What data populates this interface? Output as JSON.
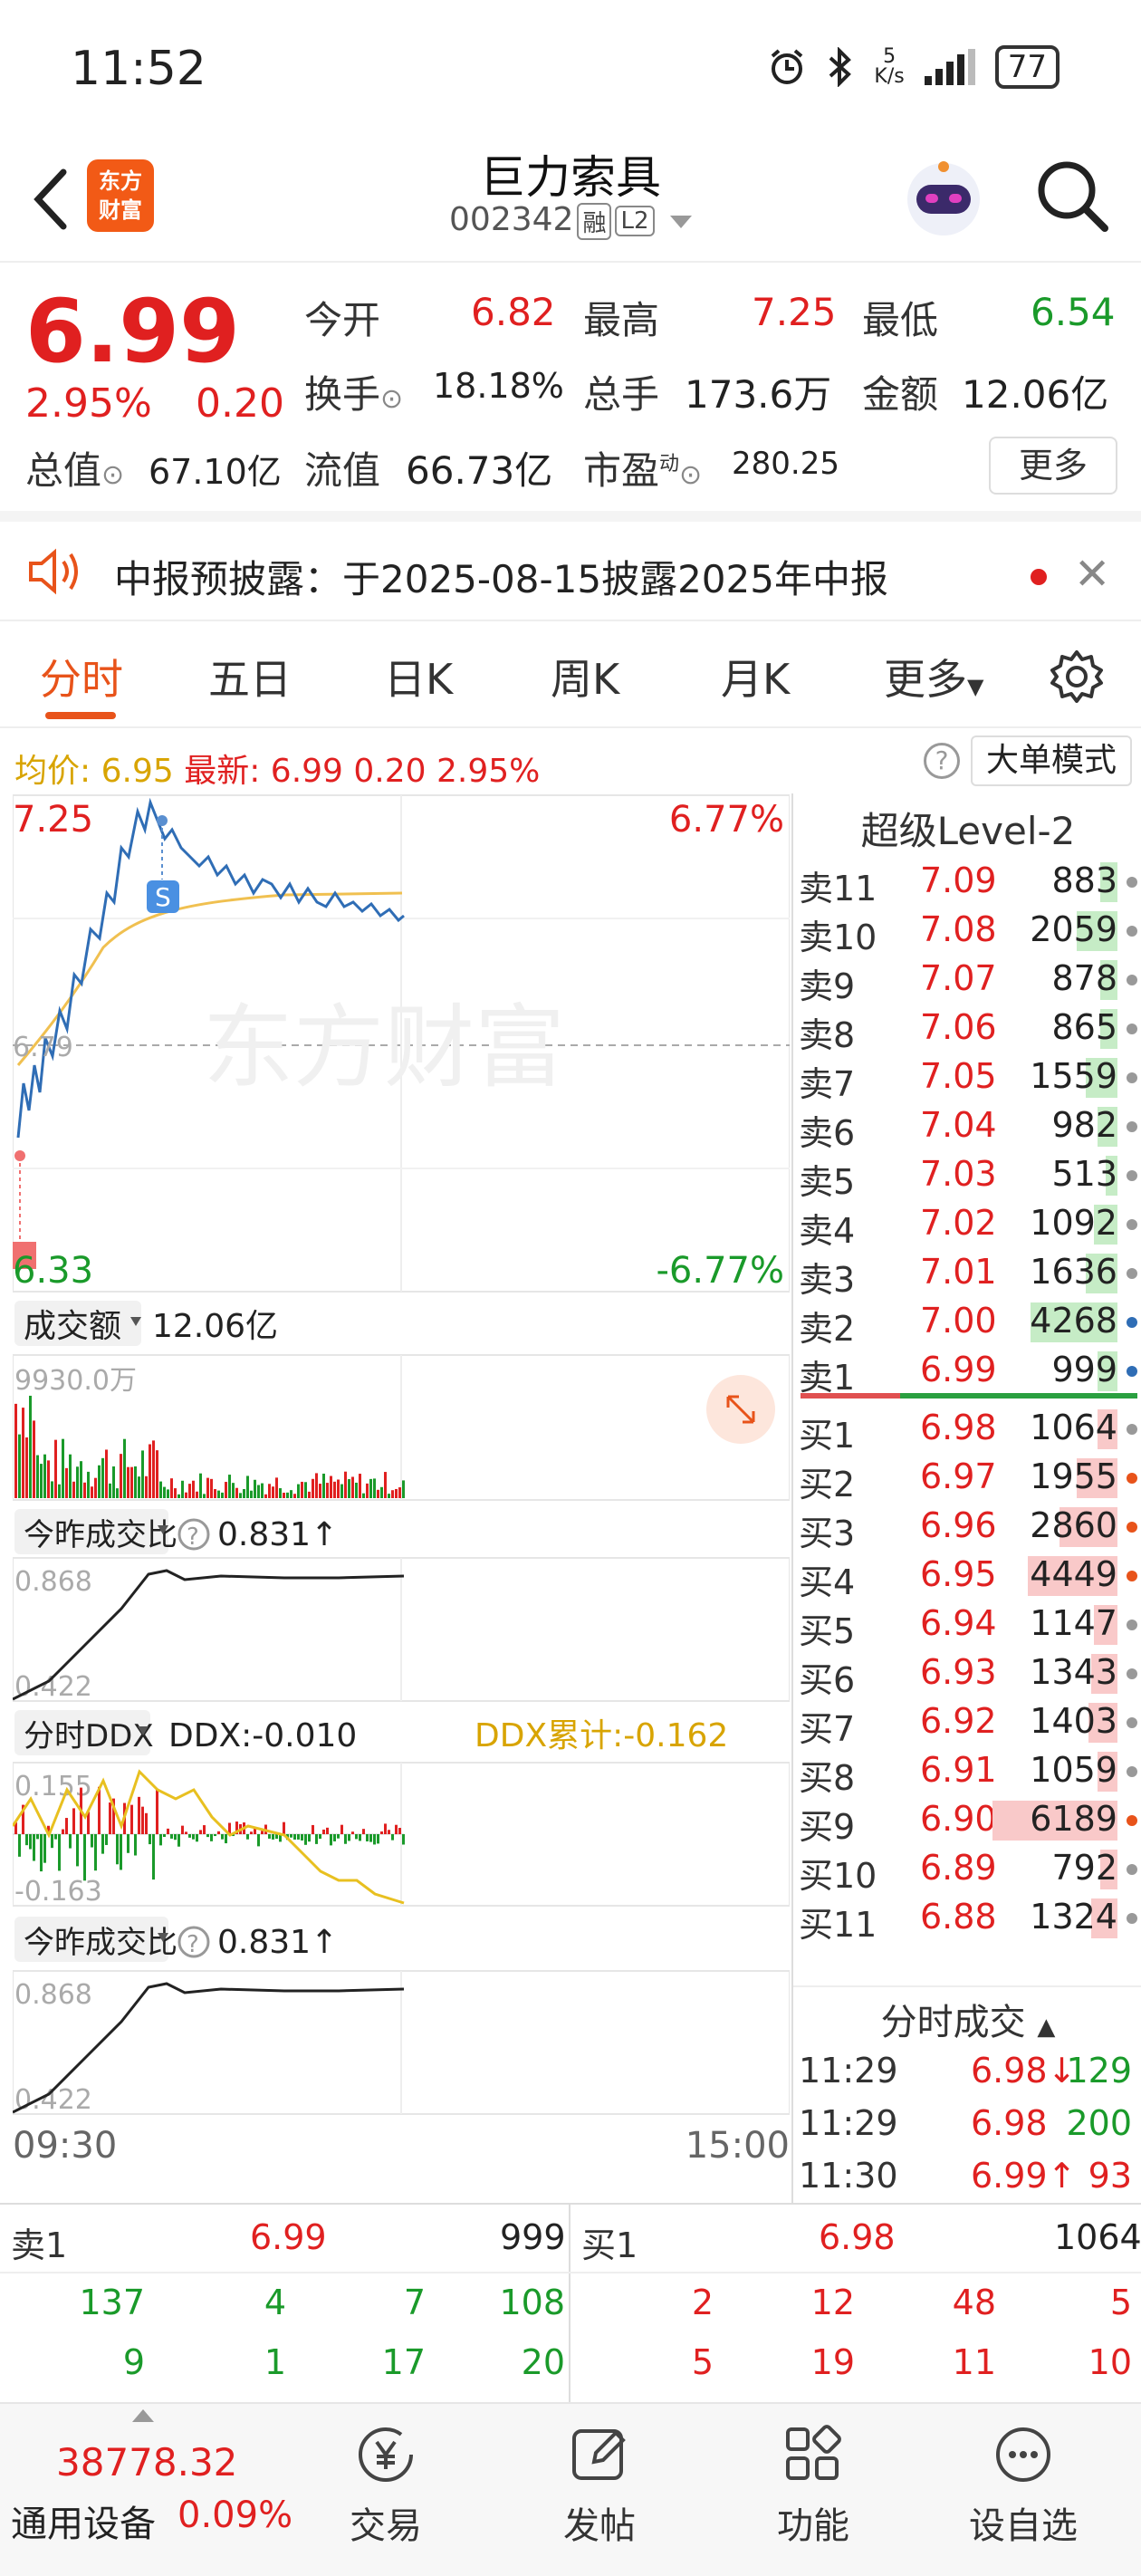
{
  "status_bar": {
    "time": "11:52",
    "net_speed_value": "5",
    "net_speed_unit": "K/s",
    "battery": "77"
  },
  "header": {
    "stock_name": "巨力索具",
    "stock_code": "002342",
    "tag_margin": "融",
    "tag_level": "L2",
    "logo_line1": "东方",
    "logo_line2": "财富"
  },
  "quote": {
    "price": "6.99",
    "change_pct": "2.95%",
    "change_amt": "0.20",
    "open_label": "今开",
    "open": "6.82",
    "high_label": "最高",
    "high": "7.25",
    "low_label": "最低",
    "low": "6.54",
    "turnover_label": "换手",
    "turnover": "18.18%",
    "volume_label": "总手",
    "volume": "173.6万",
    "amount_label": "金额",
    "amount": "12.06亿",
    "mktcap_label": "总值",
    "mktcap": "67.10亿",
    "float_label": "流值",
    "float_cap": "66.73亿",
    "pe_label": "市盈",
    "pe_sup": "动",
    "pe": "280.25",
    "more_label": "更多"
  },
  "notice": {
    "text": "中报预披露：于2025-08-15披露2025年中报"
  },
  "tabs": [
    {
      "label": "分时"
    },
    {
      "label": "五日"
    },
    {
      "label": "日K"
    },
    {
      "label": "周K"
    },
    {
      "label": "月K"
    },
    {
      "label": "更多"
    }
  ],
  "avg_line": {
    "avg_label": "均价:",
    "avg": "6.95",
    "latest_label": "最新:",
    "latest": "6.99",
    "chg": "0.20",
    "pct": "2.95%",
    "mode_label": "大单模式"
  },
  "chart": {
    "price_high": "7.25",
    "pct_high": "6.77%",
    "price_low": "6.33",
    "pct_low": "-6.77%",
    "prev_close_label": "6.79",
    "watermark": "东方财富",
    "volume_sub": {
      "title": "成交额",
      "value": "12.06亿",
      "max": "9930.0万"
    },
    "ratio_sub1": {
      "title": "今昨成交比",
      "value": "0.831↑",
      "max": "0.868",
      "min": "0.422"
    },
    "ddx_sub": {
      "title": "分时DDX",
      "value": "DDX:-0.010",
      "acc": "DDX累计:-0.162",
      "max": "0.155",
      "min": "-0.163"
    },
    "ratio_sub2": {
      "title": "今昨成交比",
      "value": "0.831↑",
      "max": "0.868",
      "min": "0.422"
    },
    "time_start": "09:30",
    "time_end": "15:00"
  },
  "level2": {
    "title": "超级Level-2",
    "asks": [
      {
        "label": "卖11",
        "price": "7.09",
        "vol": "883",
        "bar": 0.06
      },
      {
        "label": "卖10",
        "price": "7.08",
        "vol": "2059",
        "bar": 0.14
      },
      {
        "label": "卖9",
        "price": "7.07",
        "vol": "878",
        "bar": 0.06
      },
      {
        "label": "卖8",
        "price": "7.06",
        "vol": "865",
        "bar": 0.06
      },
      {
        "label": "卖7",
        "price": "7.05",
        "vol": "1559",
        "bar": 0.11
      },
      {
        "label": "卖6",
        "price": "7.04",
        "vol": "982",
        "bar": 0.07
      },
      {
        "label": "卖5",
        "price": "7.03",
        "vol": "513",
        "bar": 0.04
      },
      {
        "label": "卖4",
        "price": "7.02",
        "vol": "1092",
        "bar": 0.08
      },
      {
        "label": "卖3",
        "price": "7.01",
        "vol": "1636",
        "bar": 0.11
      },
      {
        "label": "卖2",
        "price": "7.00",
        "vol": "4268",
        "bar": 0.3
      },
      {
        "label": "卖1",
        "price": "6.99",
        "vol": "999",
        "bar": 0.07
      }
    ],
    "bids": [
      {
        "label": "买1",
        "price": "6.98",
        "vol": "1064",
        "bar": 0.07
      },
      {
        "label": "买2",
        "price": "6.97",
        "vol": "1955",
        "bar": 0.14
      },
      {
        "label": "买3",
        "price": "6.96",
        "vol": "2860",
        "bar": 0.2
      },
      {
        "label": "买4",
        "price": "6.95",
        "vol": "4449",
        "bar": 0.31
      },
      {
        "label": "买5",
        "price": "6.94",
        "vol": "1147",
        "bar": 0.08
      },
      {
        "label": "买6",
        "price": "6.93",
        "vol": "1343",
        "bar": 0.09
      },
      {
        "label": "买7",
        "price": "6.92",
        "vol": "1403",
        "bar": 0.1
      },
      {
        "label": "买8",
        "price": "6.91",
        "vol": "1059",
        "bar": 0.07
      },
      {
        "label": "买9",
        "price": "6.90",
        "vol": "6189",
        "bar": 0.43
      },
      {
        "label": "买10",
        "price": "6.89",
        "vol": "792",
        "bar": 0.06
      },
      {
        "label": "买11",
        "price": "6.88",
        "vol": "1324",
        "bar": 0.09
      }
    ],
    "ticks_title": "分时成交",
    "ticks": [
      {
        "time": "11:29",
        "price": "6.98↓",
        "vol": "129"
      },
      {
        "time": "11:29",
        "price": "6.98",
        "vol": "200"
      },
      {
        "time": "11:30",
        "price": "6.99↑",
        "vol": "93"
      }
    ]
  },
  "orderbook": {
    "ask_label": "卖1",
    "ask_price": "6.99",
    "ask_vol": "999",
    "bid_label": "买1",
    "bid_price": "6.98",
    "bid_vol": "1064",
    "ask_q1": [
      "137",
      "4",
      "7",
      "108"
    ],
    "ask_q2": [
      "9",
      "1",
      "17",
      "20"
    ],
    "bid_q1": [
      "2",
      "12",
      "48",
      "5"
    ],
    "bid_q2": [
      "5",
      "19",
      "11",
      "10"
    ]
  },
  "footer": {
    "index_value": "38778.32",
    "index_name": "通用设备",
    "index_pct": "0.09%",
    "items": [
      {
        "label": "交易"
      },
      {
        "label": "发帖"
      },
      {
        "label": "功能"
      },
      {
        "label": "设自选"
      }
    ]
  },
  "colors": {
    "up": "#e02020",
    "down": "#1a9a2a",
    "accent": "#e8531a",
    "price_line": "#2f6db5",
    "avg_line": "#f0c050"
  }
}
